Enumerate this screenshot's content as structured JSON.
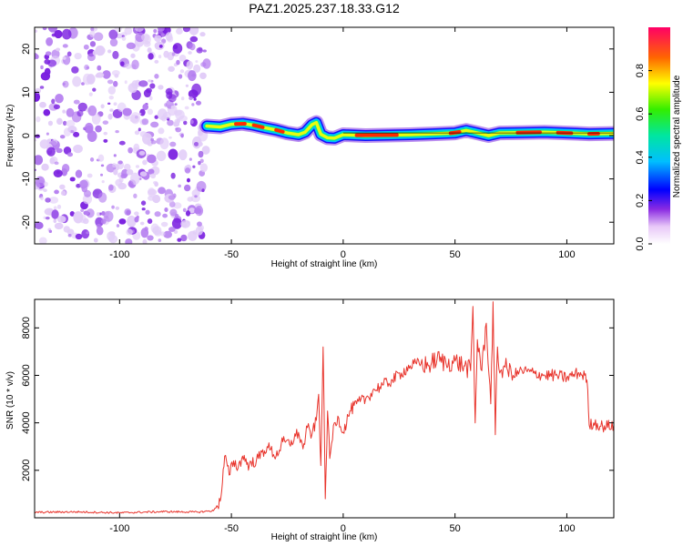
{
  "title": "PAZ1.2025.237.18.33.G12",
  "colors": {
    "snr_line": "#e8342c",
    "noise_purple": "#7a1fe0",
    "frame": "#000000"
  },
  "chart_data": [
    {
      "type": "heatmap",
      "xlabel": "Height of straight line (km)",
      "ylabel": "Frequency (Hz)",
      "xlim": [
        -138,
        121
      ],
      "ylim": [
        -25,
        25
      ],
      "x_ticks": [
        -100,
        -50,
        0,
        50,
        100
      ],
      "y_ticks": [
        -20,
        -10,
        0,
        10,
        20
      ],
      "x_tick_labels": [
        "-100",
        "-50",
        "0",
        "50",
        "100"
      ],
      "y_tick_labels": [
        "-20",
        "-10",
        "0",
        "10",
        "20"
      ],
      "noise_region": [
        -138,
        -61
      ],
      "ridge": {
        "height_km": [
          -61,
          -55,
          -50,
          -45,
          -40,
          -35,
          -30,
          -25,
          -20,
          -17,
          -14,
          -12,
          -10,
          -7,
          -4,
          0,
          5,
          10,
          20,
          30,
          40,
          45,
          50,
          55,
          60,
          65,
          70,
          80,
          90,
          100,
          110,
          121
        ],
        "frequency_hz": [
          2.2,
          2.0,
          2.6,
          2.8,
          2.4,
          1.8,
          1.3,
          0.6,
          0.2,
          0.8,
          2.5,
          3.0,
          0.3,
          -0.5,
          -0.6,
          0.2,
          0.1,
          0.0,
          0.1,
          0.2,
          0.4,
          0.5,
          0.6,
          1.2,
          0.6,
          0.0,
          0.6,
          0.7,
          0.8,
          0.6,
          0.4,
          0.5
        ]
      },
      "colorbar": {
        "label": "Normalized spectral amplitude",
        "ticks": [
          0.0,
          0.2,
          0.4,
          0.6,
          0.8
        ],
        "tick_labels": [
          "0.0",
          "0.2",
          "0.4",
          "0.6",
          "0.8"
        ],
        "range": [
          0,
          1
        ]
      }
    },
    {
      "type": "line",
      "xlabel": "Height of straight line (km)",
      "ylabel": "SNR (10 * v/v)",
      "xlim": [
        -138,
        121
      ],
      "ylim": [
        0,
        9200
      ],
      "x_ticks": [
        -100,
        -50,
        0,
        50,
        100
      ],
      "y_ticks": [
        2000,
        4000,
        6000,
        8000
      ],
      "x_tick_labels": [
        "-100",
        "-50",
        "0",
        "50",
        "100"
      ],
      "y_tick_labels": [
        "2000",
        "4000",
        "6000",
        "8000"
      ],
      "series": [
        {
          "x": [
            -138,
            -120,
            -100,
            -80,
            -65,
            -58,
            -55,
            -54,
            -53,
            -51,
            -49,
            -47,
            -45,
            -42,
            -38,
            -34,
            -30,
            -27,
            -24,
            -20,
            -18,
            -16,
            -14,
            -12,
            -11,
            -10,
            -9,
            -8,
            -7,
            -6,
            -4,
            -2,
            0,
            3,
            6,
            10,
            14,
            18,
            22,
            26,
            30,
            34,
            38,
            42,
            46,
            50,
            54,
            57,
            58,
            59,
            60,
            62,
            64,
            66,
            67,
            68,
            69,
            70,
            72,
            76,
            80,
            85,
            90,
            95,
            100,
            105,
            108,
            109,
            110,
            112,
            116,
            121
          ],
          "y": [
            230,
            250,
            210,
            260,
            240,
            300,
            700,
            1500,
            2600,
            1800,
            2400,
            2100,
            2600,
            2200,
            2500,
            3000,
            2600,
            3200,
            3100,
            3600,
            2900,
            3800,
            3500,
            4100,
            5200,
            2200,
            7200,
            800,
            4500,
            2500,
            4000,
            4200,
            3600,
            4500,
            4800,
            5000,
            5400,
            5600,
            5800,
            6100,
            6400,
            6500,
            6400,
            6700,
            6500,
            6600,
            6400,
            6200,
            8900,
            4000,
            7500,
            6200,
            8200,
            4800,
            9100,
            3500,
            7200,
            6100,
            6400,
            6000,
            6200,
            6100,
            6000,
            6000,
            5900,
            6100,
            6000,
            5800,
            3900,
            4000,
            3850,
            3900
          ]
        }
      ]
    }
  ]
}
